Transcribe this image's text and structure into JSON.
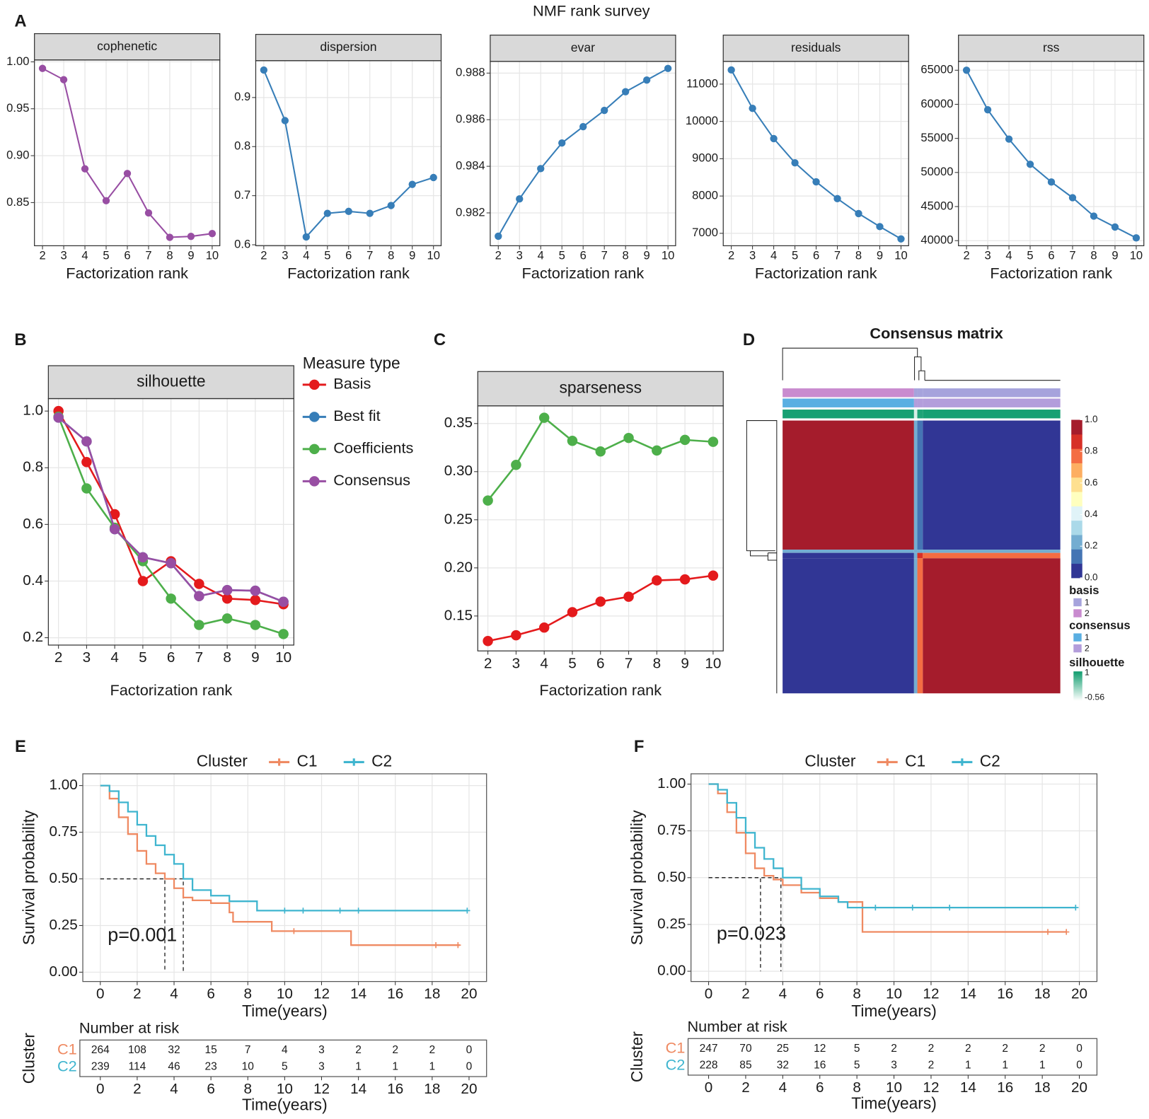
{
  "figure": {
    "title": "NMF rank survey",
    "panel_labels": [
      "A",
      "B",
      "C",
      "D",
      "E",
      "F"
    ]
  },
  "chart_data": [
    {
      "type": "line",
      "title": "cophenetic",
      "xlabel": "Factorization rank",
      "x": [
        2,
        3,
        4,
        5,
        6,
        7,
        8,
        9,
        10
      ],
      "xticks": [
        2,
        3,
        4,
        5,
        6,
        7,
        8,
        9,
        10
      ],
      "xlim": [
        1.62,
        10.36
      ],
      "ylim": [
        0.804,
        1.002
      ],
      "yticks": [
        0.85,
        {
          "value": 0.9,
          "label": "0.90"
        },
        0.95,
        {
          "value": 1,
          "label": "1.00"
        }
      ],
      "grid": true,
      "series": [
        {
          "color": "#984ea3",
          "values": [
            0.993,
            0.981,
            0.886,
            0.852,
            0.881,
            0.839,
            0.813,
            0.814,
            0.817
          ]
        }
      ]
    },
    {
      "type": "line",
      "title": "dispersion",
      "xlabel": "Factorization rank",
      "x": [
        2,
        3,
        4,
        5,
        6,
        7,
        8,
        9,
        10
      ],
      "xticks": [
        2,
        3,
        4,
        5,
        6,
        7,
        8,
        9,
        10
      ],
      "xlim": [
        1.62,
        10.36
      ],
      "ylim": [
        0.598,
        0.975
      ],
      "yticks": [
        0.6,
        0.7,
        0.8,
        0.9
      ],
      "grid": true,
      "series": [
        {
          "color": "#377eb8",
          "values": [
            0.956,
            0.853,
            0.616,
            0.664,
            0.668,
            0.664,
            0.68,
            0.723,
            0.737
          ]
        }
      ]
    },
    {
      "type": "line",
      "title": "evar",
      "xlabel": "Factorization rank",
      "x": [
        2,
        3,
        4,
        5,
        6,
        7,
        8,
        9,
        10
      ],
      "xticks": [
        2,
        3,
        4,
        5,
        6,
        7,
        8,
        9,
        10
      ],
      "xlim": [
        1.62,
        10.36
      ],
      "ylim": [
        0.98059,
        0.9885
      ],
      "yticks": [
        0.982,
        0.984,
        0.986,
        0.988
      ],
      "grid": true,
      "series": [
        {
          "color": "#377eb8",
          "values": [
            0.981,
            0.9826,
            0.9839,
            0.985,
            0.9857,
            0.9864,
            0.9872,
            0.9877,
            0.9882
          ]
        }
      ]
    },
    {
      "type": "line",
      "title": "residuals",
      "xlabel": "Factorization rank",
      "x": [
        2,
        3,
        4,
        5,
        6,
        7,
        8,
        9,
        10
      ],
      "xticks": [
        2,
        3,
        4,
        5,
        6,
        7,
        8,
        9,
        10
      ],
      "xlim": [
        1.62,
        10.36
      ],
      "ylim": [
        6667,
        11608
      ],
      "yticks": [
        7000,
        8000,
        9000,
        10000,
        11000
      ],
      "grid": true,
      "series": [
        {
          "color": "#377eb8",
          "values": [
            11380,
            10350,
            9540,
            8890,
            8380,
            7930,
            7530,
            7180,
            6850
          ]
        }
      ]
    },
    {
      "type": "line",
      "title": "rss",
      "xlabel": "Factorization rank",
      "x": [
        2,
        3,
        4,
        5,
        6,
        7,
        8,
        9,
        10
      ],
      "xticks": [
        2,
        3,
        4,
        5,
        6,
        7,
        8,
        9,
        10
      ],
      "xlim": [
        1.62,
        10.36
      ],
      "ylim": [
        39250,
        66290
      ],
      "yticks": [
        40000,
        45000,
        50000,
        55000,
        60000,
        65000
      ],
      "grid": true,
      "series": [
        {
          "color": "#377eb8",
          "values": [
            65000,
            59200,
            54900,
            51200,
            48600,
            46300,
            43600,
            42000,
            40400
          ]
        }
      ]
    },
    {
      "type": "line",
      "title": "silhouette",
      "xlabel": "Factorization rank",
      "legend_title": "Measure type",
      "x": [
        2,
        3,
        4,
        5,
        6,
        7,
        8,
        9,
        10
      ],
      "xticks": [
        2,
        3,
        4,
        5,
        6,
        7,
        8,
        9,
        10
      ],
      "xlim": [
        1.64,
        10.37
      ],
      "ylim": [
        0.174,
        1.044
      ],
      "yticks": [
        0.2,
        0.4,
        0.6,
        0.8,
        {
          "value": 1,
          "label": "1.0"
        }
      ],
      "grid": true,
      "series": [
        {
          "name": "Basis",
          "color": "#e41a1c",
          "values": [
            1.0,
            0.82,
            0.636,
            0.4,
            0.47,
            0.39,
            0.338,
            0.333,
            0.318
          ]
        },
        {
          "name": "Best fit",
          "color": "#377eb8",
          "values": [
            0.977,
            0.893,
            0.583,
            0.484,
            0.463,
            0.347,
            0.368,
            0.366,
            0.327
          ]
        },
        {
          "name": "Coefficients",
          "color": "#4daf4a",
          "values": [
            0.98,
            0.727,
            0.588,
            0.47,
            0.338,
            0.245,
            0.268,
            0.245,
            0.213
          ]
        },
        {
          "name": "Consensus",
          "color": "#984ea3",
          "values": [
            0.977,
            0.893,
            0.583,
            0.484,
            0.463,
            0.347,
            0.368,
            0.366,
            0.327
          ]
        }
      ]
    },
    {
      "type": "line",
      "title": "sparseness",
      "xlabel": "Factorization rank",
      "x": [
        2,
        3,
        4,
        5,
        6,
        7,
        8,
        9,
        10
      ],
      "xticks": [
        2,
        3,
        4,
        5,
        6,
        7,
        8,
        9,
        10
      ],
      "xlim": [
        1.64,
        10.36
      ],
      "ylim": [
        0.1137,
        0.3683
      ],
      "yticks": [
        0.15,
        {
          "value": 0.2,
          "label": "0.20"
        },
        0.25,
        {
          "value": 0.3,
          "label": "0.30"
        },
        0.35
      ],
      "grid": true,
      "series": [
        {
          "color": "#e41a1c",
          "values": [
            0.124,
            0.13,
            0.138,
            0.154,
            0.165,
            0.17,
            0.187,
            0.188,
            0.192
          ]
        },
        {
          "color": "#4daf4a",
          "values": [
            0.27,
            0.307,
            0.356,
            0.332,
            0.321,
            0.335,
            0.322,
            0.333,
            0.331
          ]
        }
      ]
    },
    {
      "type": "heatmap",
      "title": "Consensus matrix",
      "row_sizes": [
        238,
        6,
        10,
        249
      ],
      "col_sizes": [
        238,
        6,
        10,
        249
      ],
      "values": [
        [
          1.0,
          0.2,
          0.1,
          0.0
        ],
        [
          0.2,
          0.2,
          0.2,
          0.2
        ],
        [
          0.0,
          0.2,
          0.9,
          0.8
        ],
        [
          0.0,
          0.2,
          0.8,
          1.0
        ]
      ],
      "zlim": [
        0,
        1
      ],
      "colorscale": [
        "#313695",
        "#4575b4",
        "#74add1",
        "#abd9e9",
        "#e0f3f8",
        "#ffffbf",
        "#fee090",
        "#fdae61",
        "#f46d43",
        "#d73027",
        "#a51c2c"
      ],
      "colorbar_ticks": [
        {
          "value": 0,
          "label": "0.0"
        },
        0.2,
        0.4,
        0.6,
        0.8,
        {
          "value": 1,
          "label": "1.0"
        }
      ],
      "annotations": [
        {
          "name": "basis",
          "levels": [
            "1",
            "2"
          ],
          "colors": [
            "#a6a3dc",
            "#c98bcf"
          ],
          "blocks": [
            "2",
            "1",
            "1",
            "1"
          ]
        },
        {
          "name": "consensus",
          "levels": [
            "1",
            "2"
          ],
          "colors": [
            "#5aafe2",
            "#b39ddb"
          ],
          "blocks": [
            "1",
            "2",
            "2",
            "2"
          ]
        }
      ],
      "silhouette": {
        "name": "silhouette",
        "range": [
          -0.56,
          1
        ],
        "low_color": "#ffffff",
        "high_color": "#0f9d6e",
        "values": [
          0.95,
          -0.3,
          0.9,
          0.95
        ]
      }
    },
    {
      "type": "survival",
      "legend_title": "Cluster",
      "xlabel": "Time(years)",
      "ylabel": "Survival probability",
      "annotation": "p=0.001",
      "median_level": 0.5,
      "xlim": [
        -0.95,
        20.95
      ],
      "ylim": [
        -0.05,
        1.063
      ],
      "xticks": [
        0,
        2,
        4,
        6,
        8,
        10,
        12,
        14,
        16,
        18,
        20
      ],
      "yticks": [
        {
          "value": 0,
          "label": "0.00"
        },
        0.25,
        {
          "value": 0.5,
          "label": "0.50"
        },
        0.75,
        {
          "value": 1,
          "label": "1.00"
        }
      ],
      "grid": true,
      "risk_table": {
        "title": "Number at risk",
        "ylabel": "Cluster",
        "xlabel": "Time(years)"
      },
      "series": [
        {
          "name": "C1",
          "color": "#ef8a62",
          "x": [
            0,
            0.5,
            1,
            1.5,
            2,
            2.5,
            3,
            3.5,
            4,
            4.5,
            5,
            6,
            7,
            7.2,
            9.3,
            13.6,
            19.5
          ],
          "values": [
            1,
            0.93,
            0.83,
            0.74,
            0.65,
            0.58,
            0.53,
            0.5,
            0.45,
            0.4,
            0.385,
            0.37,
            0.32,
            0.27,
            0.22,
            0.145,
            0.145
          ],
          "censor_x": [
            10.5,
            18.2,
            19.4
          ],
          "median": 3.5,
          "at_risk": [
            264,
            108,
            32,
            15,
            7,
            4,
            3,
            2,
            2,
            2,
            0
          ]
        },
        {
          "name": "C2",
          "color": "#3fb5cf",
          "x": [
            0,
            0.5,
            1,
            1.5,
            2,
            2.5,
            3,
            3.5,
            4,
            4.5,
            5,
            6,
            7,
            8.5,
            19.9
          ],
          "values": [
            1,
            0.97,
            0.91,
            0.86,
            0.79,
            0.73,
            0.68,
            0.63,
            0.58,
            0.5,
            0.44,
            0.41,
            0.38,
            0.33,
            0.33
          ],
          "censor_x": [
            10,
            11,
            13,
            14,
            19.9
          ],
          "median": 4.5,
          "at_risk": [
            239,
            114,
            46,
            23,
            10,
            5,
            3,
            1,
            1,
            1,
            0
          ]
        }
      ]
    },
    {
      "type": "survival",
      "legend_title": "Cluster",
      "xlabel": "Time(years)",
      "ylabel": "Survival probability",
      "annotation": "p=0.023",
      "median_level": 0.5,
      "xlim": [
        -0.95,
        20.95
      ],
      "ylim": [
        -0.055,
        1.055
      ],
      "xticks": [
        0,
        2,
        4,
        6,
        8,
        10,
        12,
        14,
        16,
        18,
        20
      ],
      "yticks": [
        {
          "value": 0,
          "label": "0.00"
        },
        0.25,
        {
          "value": 0.5,
          "label": "0.50"
        },
        0.75,
        {
          "value": 1,
          "label": "1.00"
        }
      ],
      "grid": true,
      "risk_table": {
        "title": "Number at risk",
        "ylabel": "Cluster",
        "xlabel": "Time(years)"
      },
      "series": [
        {
          "name": "C1",
          "color": "#ef8a62",
          "x": [
            0,
            0.5,
            1,
            1.5,
            2,
            2.5,
            3,
            3.5,
            4,
            5,
            6,
            7,
            8.3,
            19.3
          ],
          "values": [
            1,
            0.95,
            0.85,
            0.74,
            0.63,
            0.55,
            0.51,
            0.49,
            0.46,
            0.42,
            0.39,
            0.37,
            0.21,
            0.21
          ],
          "censor_x": [
            18.3,
            19.3
          ],
          "median": 2.8,
          "at_risk": [
            247,
            70,
            25,
            12,
            5,
            2,
            2,
            2,
            2,
            2,
            0
          ]
        },
        {
          "name": "C2",
          "color": "#3fb5cf",
          "x": [
            0,
            0.5,
            1,
            1.5,
            2,
            2.5,
            3,
            3.5,
            4,
            5,
            6,
            7,
            7.5,
            19.8
          ],
          "values": [
            1,
            0.97,
            0.9,
            0.82,
            0.74,
            0.66,
            0.6,
            0.55,
            0.5,
            0.44,
            0.4,
            0.37,
            0.34,
            0.34
          ],
          "censor_x": [
            9,
            11,
            13,
            19.8
          ],
          "median": 3.9,
          "at_risk": [
            228,
            85,
            32,
            16,
            5,
            3,
            2,
            1,
            1,
            1,
            0
          ]
        }
      ]
    }
  ]
}
